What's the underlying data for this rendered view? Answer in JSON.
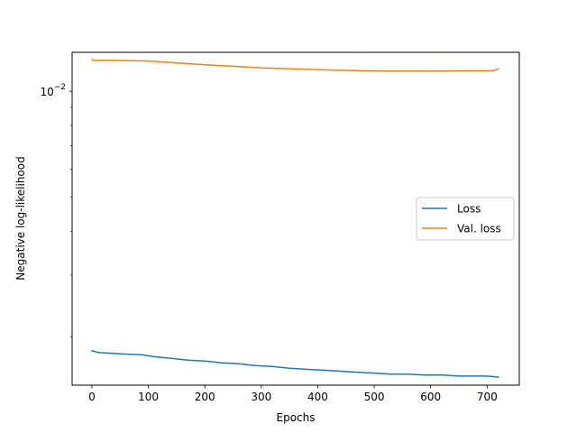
{
  "chart_data": {
    "type": "line",
    "xlabel": "Epochs",
    "ylabel": "Negative log-likelihood",
    "xlim": [
      -35,
      757
    ],
    "ylim": [
      0.00146,
      0.0129
    ],
    "yscale": "log",
    "x_ticks": [
      0,
      100,
      200,
      300,
      400,
      500,
      600,
      700
    ],
    "y_ticks": [
      {
        "value": 0.01,
        "base": "10",
        "exponent": "−2"
      }
    ],
    "grid": false,
    "legend": {
      "placement": "center-right"
    },
    "series": [
      {
        "name": "Loss",
        "color": "#1f77b4",
        "points": [
          [
            0,
            0.00183
          ],
          [
            10,
            0.00181
          ],
          [
            30,
            0.0018
          ],
          [
            60,
            0.00179
          ],
          [
            90,
            0.00178
          ],
          [
            110,
            0.00176
          ],
          [
            140,
            0.00174
          ],
          [
            170,
            0.00172
          ],
          [
            200,
            0.00171
          ],
          [
            230,
            0.00169
          ],
          [
            260,
            0.00168
          ],
          [
            290,
            0.00166
          ],
          [
            320,
            0.00165
          ],
          [
            350,
            0.00163
          ],
          [
            380,
            0.00162
          ],
          [
            410,
            0.00161
          ],
          [
            440,
            0.0016
          ],
          [
            470,
            0.00159
          ],
          [
            500,
            0.00158
          ],
          [
            530,
            0.00157
          ],
          [
            560,
            0.00157
          ],
          [
            590,
            0.00156
          ],
          [
            620,
            0.00156
          ],
          [
            650,
            0.00155
          ],
          [
            680,
            0.00155
          ],
          [
            700,
            0.00155
          ],
          [
            720,
            0.00154
          ]
        ]
      },
      {
        "name": "Val. loss",
        "color": "#ff7f0e",
        "points": [
          [
            0,
            0.0123
          ],
          [
            5,
            0.01222
          ],
          [
            20,
            0.01224
          ],
          [
            60,
            0.01222
          ],
          [
            100,
            0.01219
          ],
          [
            150,
            0.01203
          ],
          [
            200,
            0.0119
          ],
          [
            250,
            0.01178
          ],
          [
            300,
            0.01165
          ],
          [
            350,
            0.01158
          ],
          [
            400,
            0.01152
          ],
          [
            450,
            0.01146
          ],
          [
            480,
            0.01143
          ],
          [
            520,
            0.01141
          ],
          [
            560,
            0.01141
          ],
          [
            600,
            0.0114
          ],
          [
            640,
            0.01142
          ],
          [
            680,
            0.01143
          ],
          [
            710,
            0.01143
          ],
          [
            720,
            0.01157
          ]
        ]
      }
    ]
  }
}
